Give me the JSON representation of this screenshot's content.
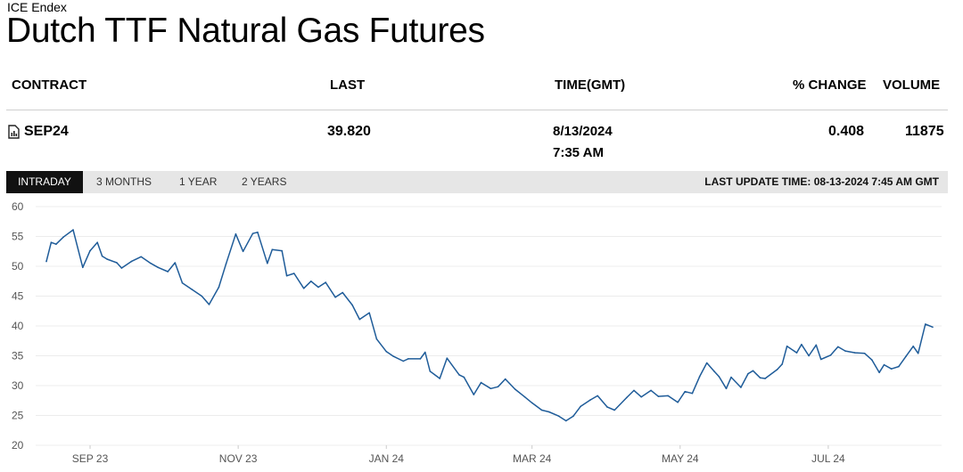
{
  "header": {
    "exchange": "ICE Endex",
    "title": "Dutch TTF Natural Gas Futures"
  },
  "table": {
    "columns": {
      "contract": "CONTRACT",
      "last": "LAST",
      "time": "TIME(GMT)",
      "change": "% CHANGE",
      "volume": "VOLUME"
    },
    "row": {
      "contract": "SEP24",
      "last": "39.820",
      "date": "8/13/2024",
      "time": "7:35 AM",
      "change": "0.408",
      "volume": "11875"
    }
  },
  "tabs": {
    "intraday": "INTRADAY",
    "three_months": "3 MONTHS",
    "one_year": "1 YEAR",
    "two_years": "2 YEARS",
    "active": "intraday"
  },
  "last_update": "LAST UPDATE TIME: 08-13-2024 7:45 AM GMT",
  "chart_data": {
    "type": "line",
    "xlabel": "",
    "ylabel": "",
    "ylim": [
      20,
      60
    ],
    "yticks": [
      "60",
      "55",
      "50",
      "45",
      "40",
      "35",
      "30",
      "25",
      "20"
    ],
    "xticks": [
      "SEP 23",
      "NOV 23",
      "JAN 24",
      "MAR 24",
      "MAY 24",
      "JUL 24"
    ],
    "xrange": [
      "2023-08-14",
      "2024-08-13"
    ],
    "grid": true,
    "line_color": "#1f5c99",
    "series": [
      {
        "points": [
          [
            "2023-08-14",
            50.8
          ],
          [
            "2023-08-16",
            54.0
          ],
          [
            "2023-08-18",
            53.7
          ],
          [
            "2023-08-21",
            54.9
          ],
          [
            "2023-08-25",
            56.1
          ],
          [
            "2023-08-29",
            49.8
          ],
          [
            "2023-09-01",
            52.6
          ],
          [
            "2023-09-04",
            54.0
          ],
          [
            "2023-09-06",
            51.7
          ],
          [
            "2023-09-08",
            51.2
          ],
          [
            "2023-09-12",
            50.6
          ],
          [
            "2023-09-14",
            49.7
          ],
          [
            "2023-09-18",
            50.8
          ],
          [
            "2023-09-22",
            51.6
          ],
          [
            "2023-09-26",
            50.5
          ],
          [
            "2023-09-29",
            49.8
          ],
          [
            "2023-10-03",
            49.1
          ],
          [
            "2023-10-06",
            50.6
          ],
          [
            "2023-10-09",
            47.2
          ],
          [
            "2023-10-13",
            46.1
          ],
          [
            "2023-10-17",
            45.0
          ],
          [
            "2023-10-20",
            43.6
          ],
          [
            "2023-10-24",
            46.5
          ],
          [
            "2023-10-27",
            50.4
          ],
          [
            "2023-10-31",
            55.4
          ],
          [
            "2023-11-03",
            52.5
          ],
          [
            "2023-11-07",
            55.5
          ],
          [
            "2023-11-09",
            55.7
          ],
          [
            "2023-11-13",
            50.5
          ],
          [
            "2023-11-15",
            52.8
          ],
          [
            "2023-11-19",
            52.6
          ],
          [
            "2023-11-21",
            48.4
          ],
          [
            "2023-11-24",
            48.8
          ],
          [
            "2023-11-28",
            46.3
          ],
          [
            "2023-12-01",
            47.5
          ],
          [
            "2023-12-04",
            46.5
          ],
          [
            "2023-12-07",
            47.3
          ],
          [
            "2023-12-11",
            44.8
          ],
          [
            "2023-12-14",
            45.6
          ],
          [
            "2023-12-18",
            43.5
          ],
          [
            "2023-12-21",
            41.1
          ],
          [
            "2023-12-25",
            42.2
          ],
          [
            "2023-12-28",
            37.8
          ],
          [
            "2024-01-01",
            35.7
          ],
          [
            "2024-01-04",
            34.9
          ],
          [
            "2024-01-08",
            34.1
          ],
          [
            "2024-01-10",
            34.5
          ],
          [
            "2024-01-15",
            34.5
          ],
          [
            "2024-01-17",
            35.6
          ],
          [
            "2024-01-19",
            32.4
          ],
          [
            "2024-01-23",
            31.2
          ],
          [
            "2024-01-26",
            34.6
          ],
          [
            "2024-01-31",
            31.8
          ],
          [
            "2024-02-02",
            31.4
          ],
          [
            "2024-02-06",
            28.5
          ],
          [
            "2024-02-09",
            30.5
          ],
          [
            "2024-02-13",
            29.5
          ],
          [
            "2024-02-16",
            29.8
          ],
          [
            "2024-02-19",
            31.1
          ],
          [
            "2024-02-23",
            29.4
          ],
          [
            "2024-02-27",
            28.1
          ],
          [
            "2024-03-01",
            27.1
          ],
          [
            "2024-03-05",
            25.9
          ],
          [
            "2024-03-08",
            25.6
          ],
          [
            "2024-03-12",
            24.9
          ],
          [
            "2024-03-15",
            24.1
          ],
          [
            "2024-03-18",
            24.9
          ],
          [
            "2024-03-21",
            26.5
          ],
          [
            "2024-03-25",
            27.6
          ],
          [
            "2024-03-28",
            28.3
          ],
          [
            "2024-04-01",
            26.4
          ],
          [
            "2024-04-04",
            25.9
          ],
          [
            "2024-04-09",
            28.0
          ],
          [
            "2024-04-12",
            29.2
          ],
          [
            "2024-04-15",
            28.1
          ],
          [
            "2024-04-19",
            29.2
          ],
          [
            "2024-04-22",
            28.2
          ],
          [
            "2024-04-26",
            28.3
          ],
          [
            "2024-04-30",
            27.2
          ],
          [
            "2024-05-03",
            29.0
          ],
          [
            "2024-05-06",
            28.7
          ],
          [
            "2024-05-09",
            31.5
          ],
          [
            "2024-05-12",
            33.8
          ],
          [
            "2024-05-15",
            32.4
          ],
          [
            "2024-05-17",
            31.5
          ],
          [
            "2024-05-20",
            29.5
          ],
          [
            "2024-05-22",
            31.4
          ],
          [
            "2024-05-26",
            29.7
          ],
          [
            "2024-05-29",
            32.0
          ],
          [
            "2024-05-31",
            32.5
          ],
          [
            "2024-06-03",
            31.3
          ],
          [
            "2024-06-05",
            31.2
          ],
          [
            "2024-06-10",
            32.7
          ],
          [
            "2024-06-12",
            33.6
          ],
          [
            "2024-06-14",
            36.6
          ],
          [
            "2024-06-18",
            35.5
          ],
          [
            "2024-06-20",
            36.9
          ],
          [
            "2024-06-23",
            35.0
          ],
          [
            "2024-06-26",
            36.8
          ],
          [
            "2024-06-28",
            34.4
          ],
          [
            "2024-07-02",
            35.1
          ],
          [
            "2024-07-05",
            36.5
          ],
          [
            "2024-07-08",
            35.8
          ],
          [
            "2024-07-12",
            35.5
          ],
          [
            "2024-07-16",
            35.4
          ],
          [
            "2024-07-19",
            34.3
          ],
          [
            "2024-07-22",
            32.2
          ],
          [
            "2024-07-24",
            33.5
          ],
          [
            "2024-07-27",
            32.8
          ],
          [
            "2024-07-30",
            33.2
          ],
          [
            "2024-08-02",
            34.9
          ],
          [
            "2024-08-05",
            36.6
          ],
          [
            "2024-08-07",
            35.4
          ],
          [
            "2024-08-10",
            40.3
          ],
          [
            "2024-08-13",
            39.8
          ]
        ]
      }
    ]
  }
}
